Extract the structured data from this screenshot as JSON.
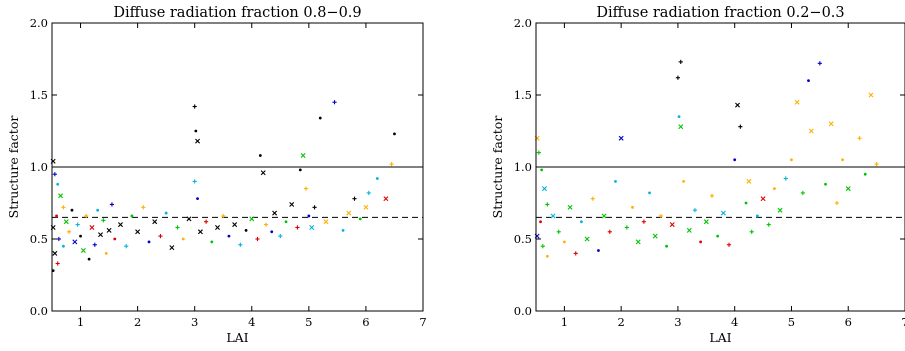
{
  "chart_data": [
    {
      "type": "scatter",
      "title": "Diffuse radiation fraction 0.8−0.9",
      "xlabel": "LAI",
      "ylabel": "Structure factor",
      "xlim": [
        0.5,
        7
      ],
      "ylim": [
        0,
        2
      ],
      "xticks": [
        1,
        2,
        3,
        4,
        5,
        6,
        7
      ],
      "yticks": [
        0.0,
        0.5,
        1.0,
        1.5,
        2.0
      ],
      "xtick_labels": [
        "1",
        "2",
        "3",
        "4",
        "5",
        "6",
        "7"
      ],
      "ytick_labels": [
        "0.0",
        "0.5",
        "1.0",
        "1.5",
        "2.0"
      ],
      "grid": false,
      "reference_lines": [
        {
          "y": 1.0,
          "style": "solid"
        },
        {
          "y": 0.65,
          "style": "dashed"
        }
      ],
      "points": [
        [
          0.52,
          1.04,
          0
        ],
        [
          0.55,
          0.95,
          1
        ],
        [
          0.6,
          0.88,
          2
        ],
        [
          0.65,
          0.8,
          3
        ],
        [
          0.7,
          0.72,
          4
        ],
        [
          0.58,
          0.66,
          5
        ],
        [
          0.52,
          0.58,
          0
        ],
        [
          0.62,
          0.5,
          1
        ],
        [
          0.7,
          0.45,
          2
        ],
        [
          0.55,
          0.4,
          0
        ],
        [
          0.6,
          0.33,
          5
        ],
        [
          0.52,
          0.28,
          0
        ],
        [
          0.75,
          0.62,
          3
        ],
        [
          0.8,
          0.55,
          4
        ],
        [
          0.85,
          0.7,
          0
        ],
        [
          0.9,
          0.48,
          1
        ],
        [
          0.95,
          0.6,
          2
        ],
        [
          1.0,
          0.52,
          0
        ],
        [
          1.05,
          0.42,
          3
        ],
        [
          1.1,
          0.66,
          4
        ],
        [
          1.15,
          0.36,
          0
        ],
        [
          1.2,
          0.58,
          5
        ],
        [
          1.25,
          0.46,
          1
        ],
        [
          1.3,
          0.7,
          2
        ],
        [
          1.35,
          0.53,
          0
        ],
        [
          1.4,
          0.63,
          3
        ],
        [
          1.45,
          0.4,
          4
        ],
        [
          1.5,
          0.56,
          0
        ],
        [
          1.55,
          0.74,
          1
        ],
        [
          1.6,
          0.5,
          5
        ],
        [
          1.7,
          0.6,
          0
        ],
        [
          1.8,
          0.45,
          2
        ],
        [
          1.9,
          0.66,
          3
        ],
        [
          2.0,
          0.55,
          0
        ],
        [
          2.1,
          0.72,
          4
        ],
        [
          2.2,
          0.48,
          1
        ],
        [
          2.3,
          0.62,
          0
        ],
        [
          2.4,
          0.52,
          5
        ],
        [
          2.5,
          0.68,
          2
        ],
        [
          2.6,
          0.44,
          0
        ],
        [
          2.7,
          0.58,
          3
        ],
        [
          2.8,
          0.5,
          4
        ],
        [
          2.9,
          0.64,
          0
        ],
        [
          3.0,
          1.42,
          0
        ],
        [
          3.02,
          1.25,
          0
        ],
        [
          3.05,
          1.18,
          0
        ],
        [
          3.0,
          0.9,
          2
        ],
        [
          3.05,
          0.78,
          1
        ],
        [
          3.1,
          0.55,
          0
        ],
        [
          3.2,
          0.62,
          5
        ],
        [
          3.3,
          0.48,
          3
        ],
        [
          3.4,
          0.58,
          0
        ],
        [
          3.5,
          0.66,
          4
        ],
        [
          3.6,
          0.52,
          1
        ],
        [
          3.7,
          0.6,
          0
        ],
        [
          3.8,
          0.46,
          2
        ],
        [
          3.9,
          0.56,
          0
        ],
        [
          4.0,
          0.64,
          3
        ],
        [
          4.1,
          0.5,
          5
        ],
        [
          4.15,
          1.08,
          0
        ],
        [
          4.2,
          0.96,
          0
        ],
        [
          4.25,
          0.6,
          4
        ],
        [
          4.35,
          0.55,
          1
        ],
        [
          4.4,
          0.68,
          0
        ],
        [
          4.5,
          0.52,
          2
        ],
        [
          4.6,
          0.62,
          3
        ],
        [
          4.7,
          0.74,
          0
        ],
        [
          4.8,
          0.58,
          5
        ],
        [
          4.85,
          0.98,
          0
        ],
        [
          4.9,
          1.08,
          3
        ],
        [
          4.95,
          0.85,
          4
        ],
        [
          5.0,
          0.66,
          1
        ],
        [
          5.05,
          0.58,
          2
        ],
        [
          5.1,
          0.72,
          0
        ],
        [
          5.2,
          1.34,
          0
        ],
        [
          5.3,
          0.62,
          4
        ],
        [
          5.45,
          1.45,
          1
        ],
        [
          5.6,
          0.56,
          2
        ],
        [
          5.7,
          0.68,
          4
        ],
        [
          5.8,
          0.78,
          0
        ],
        [
          5.9,
          0.64,
          3
        ],
        [
          6.0,
          0.72,
          4
        ],
        [
          6.05,
          0.82,
          2
        ],
        [
          6.2,
          0.92,
          2
        ],
        [
          6.35,
          0.78,
          5
        ],
        [
          6.45,
          1.02,
          4
        ],
        [
          6.5,
          1.23,
          0
        ]
      ]
    },
    {
      "type": "scatter",
      "title": "Diffuse radiation fraction 0.2−0.3",
      "xlabel": "LAI",
      "ylabel": "Structure factor",
      "xlim": [
        0.5,
        7
      ],
      "ylim": [
        0,
        2
      ],
      "xticks": [
        1,
        2,
        3,
        4,
        5,
        6,
        7
      ],
      "yticks": [
        0.0,
        0.5,
        1.0,
        1.5,
        2.0
      ],
      "xtick_labels": [
        "1",
        "2",
        "3",
        "4",
        "5",
        "6",
        "7"
      ],
      "ytick_labels": [
        "0.0",
        "0.5",
        "1.0",
        "1.5",
        "2.0"
      ],
      "grid": false,
      "reference_lines": [
        {
          "y": 1.0,
          "style": "solid"
        },
        {
          "y": 0.65,
          "style": "dashed"
        }
      ],
      "points": [
        [
          0.52,
          1.2,
          4
        ],
        [
          0.55,
          1.1,
          3
        ],
        [
          0.6,
          0.98,
          3
        ],
        [
          0.65,
          0.85,
          2
        ],
        [
          0.7,
          0.74,
          3
        ],
        [
          0.58,
          0.62,
          5
        ],
        [
          0.52,
          0.52,
          1
        ],
        [
          0.62,
          0.45,
          3
        ],
        [
          0.7,
          0.38,
          4
        ],
        [
          0.8,
          0.66,
          2
        ],
        [
          0.9,
          0.55,
          3
        ],
        [
          1.0,
          0.48,
          4
        ],
        [
          1.1,
          0.72,
          3
        ],
        [
          1.2,
          0.4,
          5
        ],
        [
          1.3,
          0.62,
          2
        ],
        [
          1.4,
          0.5,
          3
        ],
        [
          1.5,
          0.78,
          4
        ],
        [
          1.6,
          0.42,
          1
        ],
        [
          1.7,
          0.66,
          3
        ],
        [
          1.8,
          0.55,
          5
        ],
        [
          1.9,
          0.9,
          2
        ],
        [
          2.0,
          1.2,
          1
        ],
        [
          2.1,
          0.58,
          3
        ],
        [
          2.2,
          0.72,
          4
        ],
        [
          2.3,
          0.48,
          3
        ],
        [
          2.4,
          0.62,
          5
        ],
        [
          2.5,
          0.82,
          2
        ],
        [
          2.6,
          0.52,
          3
        ],
        [
          2.7,
          0.66,
          4
        ],
        [
          2.8,
          0.45,
          3
        ],
        [
          2.9,
          0.6,
          5
        ],
        [
          3.0,
          1.62,
          0
        ],
        [
          3.02,
          1.35,
          2
        ],
        [
          3.05,
          1.28,
          3
        ],
        [
          3.05,
          1.73,
          0
        ],
        [
          3.1,
          0.9,
          4
        ],
        [
          3.2,
          0.56,
          3
        ],
        [
          3.3,
          0.7,
          2
        ],
        [
          3.4,
          0.48,
          5
        ],
        [
          3.5,
          0.62,
          3
        ],
        [
          3.6,
          0.8,
          4
        ],
        [
          3.7,
          0.52,
          3
        ],
        [
          3.8,
          0.68,
          2
        ],
        [
          3.9,
          0.46,
          5
        ],
        [
          4.0,
          1.05,
          1
        ],
        [
          4.05,
          1.43,
          0
        ],
        [
          4.1,
          1.28,
          0
        ],
        [
          4.2,
          0.75,
          3
        ],
        [
          4.25,
          0.9,
          4
        ],
        [
          4.3,
          0.55,
          3
        ],
        [
          4.4,
          0.66,
          2
        ],
        [
          4.5,
          0.78,
          5
        ],
        [
          4.6,
          0.6,
          3
        ],
        [
          4.7,
          0.85,
          4
        ],
        [
          4.8,
          0.7,
          3
        ],
        [
          4.9,
          0.92,
          2
        ],
        [
          5.0,
          1.05,
          4
        ],
        [
          5.1,
          1.45,
          4
        ],
        [
          5.2,
          0.82,
          3
        ],
        [
          5.3,
          1.6,
          1
        ],
        [
          5.35,
          1.25,
          4
        ],
        [
          5.5,
          1.72,
          1
        ],
        [
          5.6,
          0.88,
          3
        ],
        [
          5.7,
          1.3,
          4
        ],
        [
          5.8,
          0.75,
          4
        ],
        [
          5.9,
          1.05,
          4
        ],
        [
          6.0,
          0.85,
          3
        ],
        [
          6.2,
          1.2,
          4
        ],
        [
          6.3,
          0.95,
          3
        ],
        [
          6.4,
          1.5,
          4
        ],
        [
          6.5,
          1.02,
          4
        ]
      ]
    }
  ],
  "colors": {
    "series_palette": [
      "#000000",
      "#0000cc",
      "#00b4e0",
      "#00c400",
      "#ffb000",
      "#e00000"
    ],
    "axis": "#000000",
    "background": "#ffffff"
  }
}
